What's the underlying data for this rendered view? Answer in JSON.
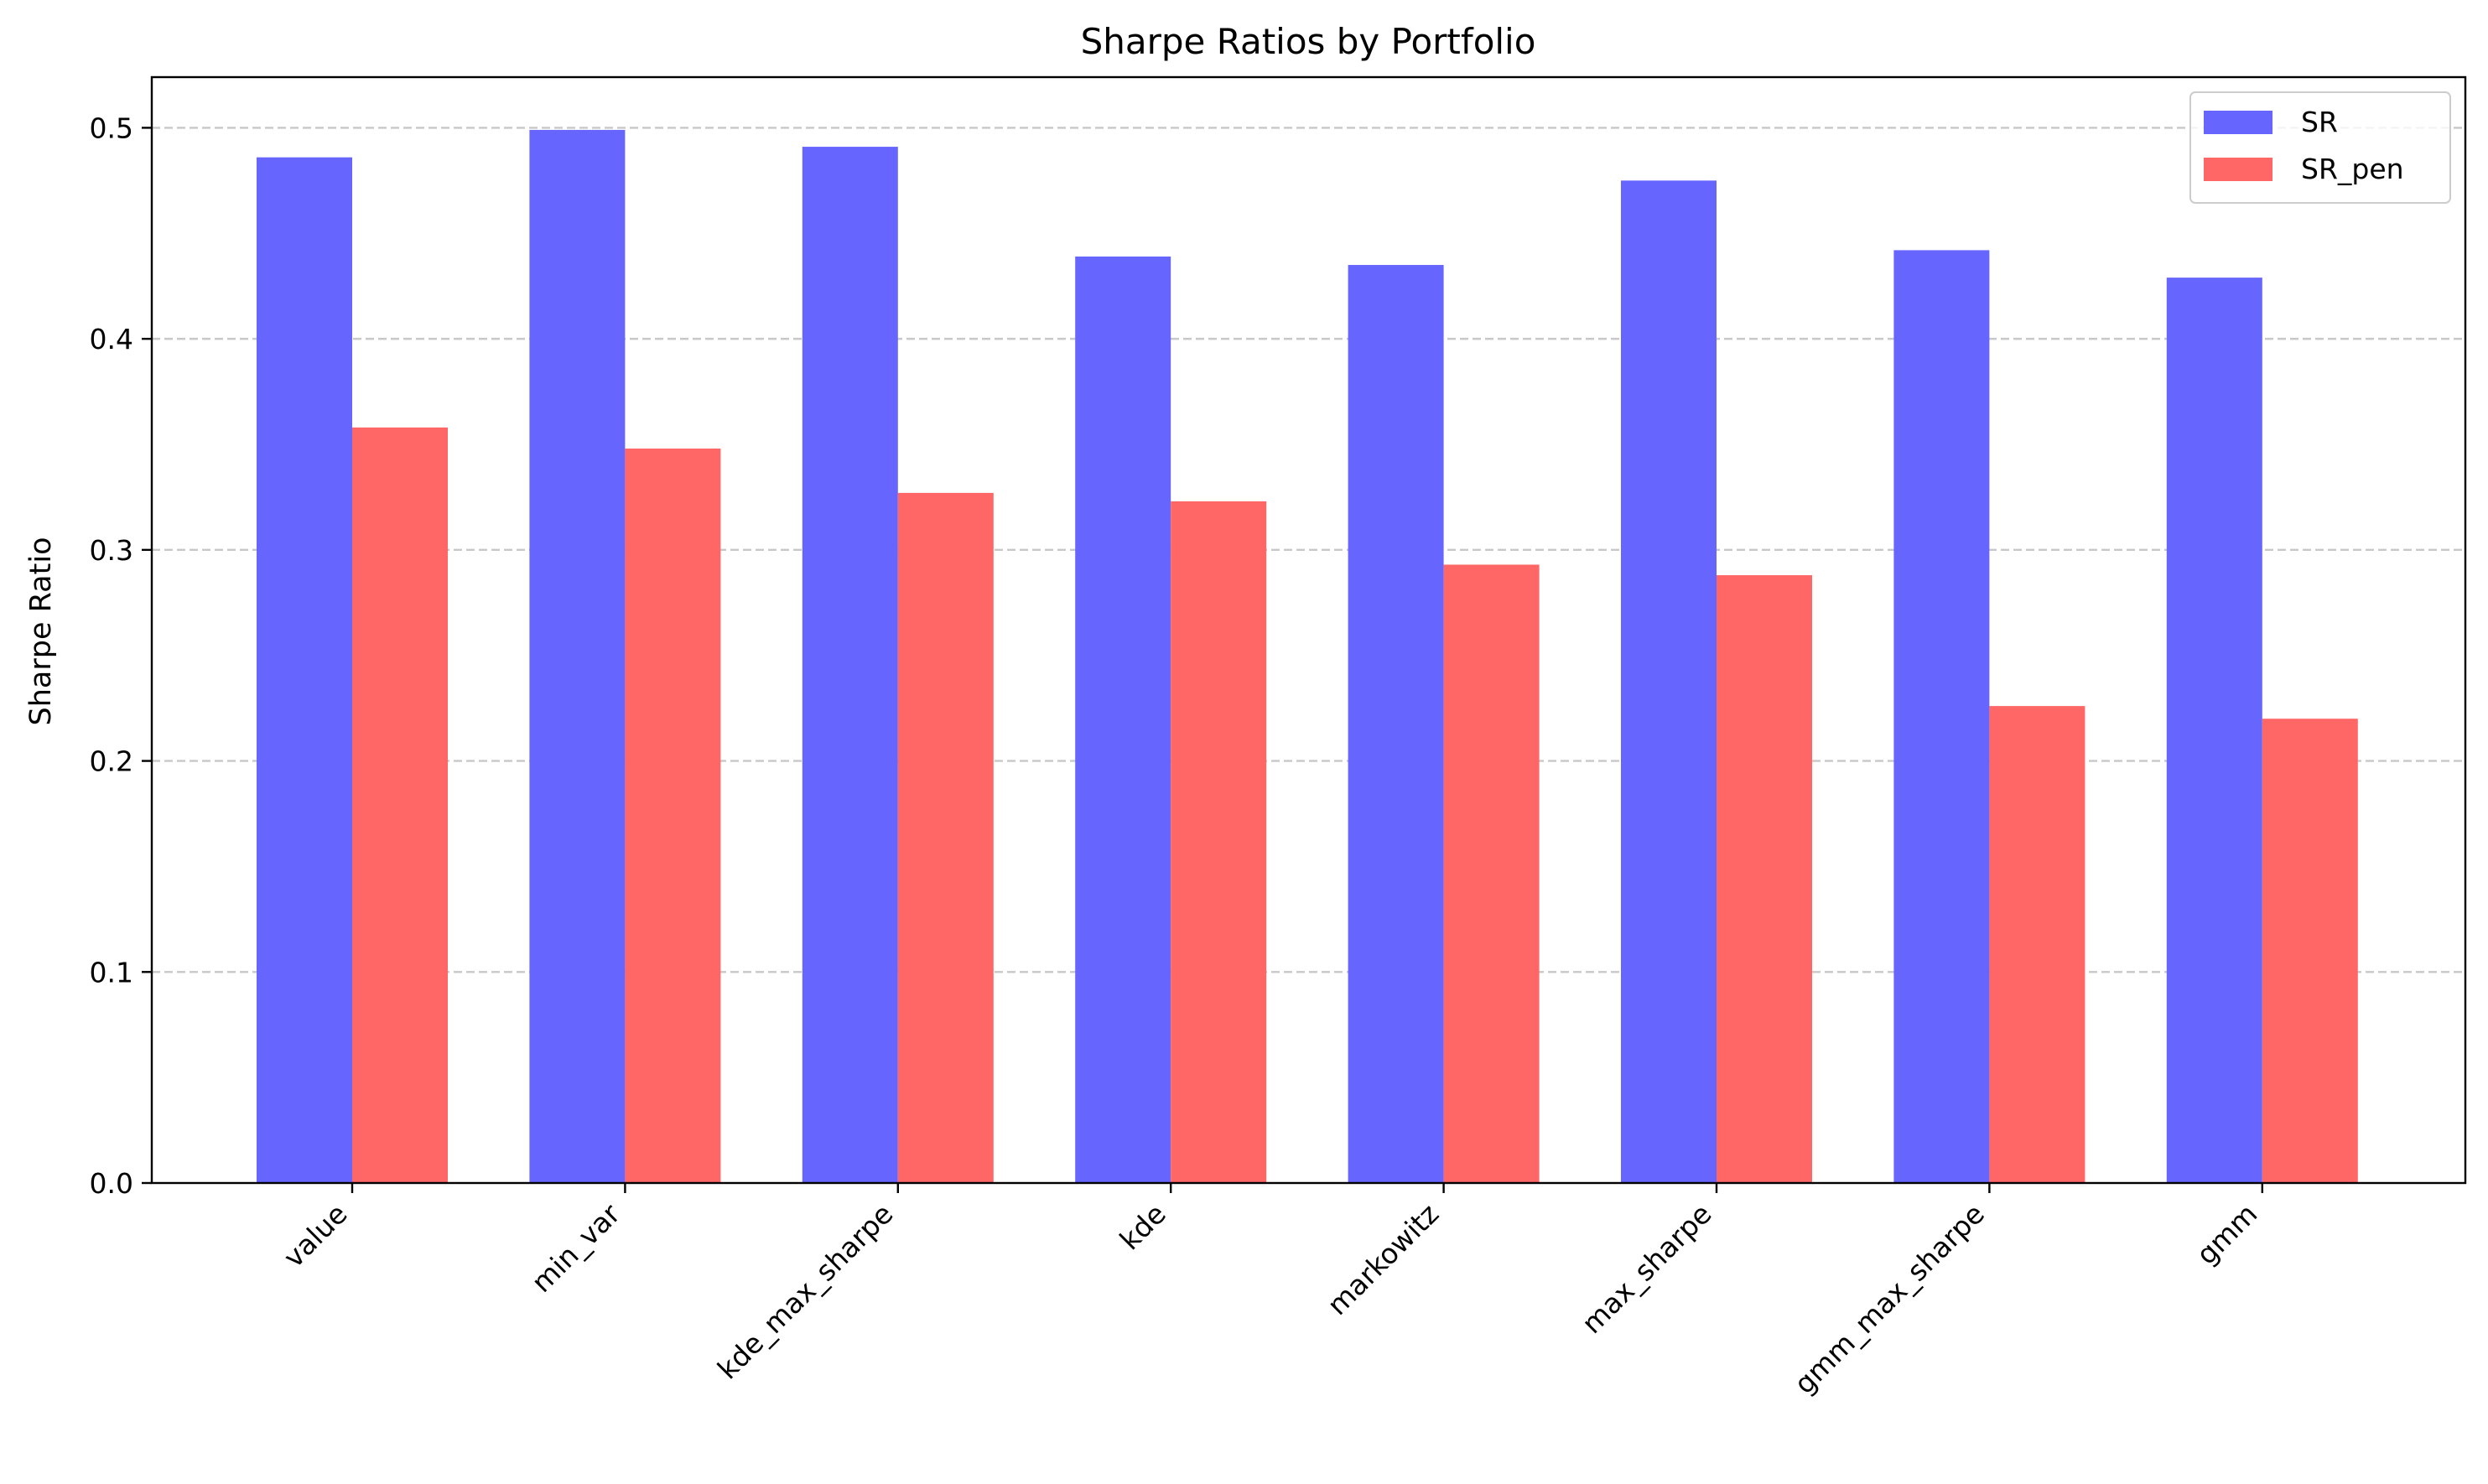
{
  "chart_data": {
    "type": "bar",
    "title": "Sharpe Ratios by Portfolio",
    "xlabel": "",
    "ylabel": "Sharpe Ratio",
    "ylim": [
      0,
      0.524
    ],
    "yticks": [
      0.0,
      0.1,
      0.2,
      0.3,
      0.4,
      0.5
    ],
    "ytick_labels": [
      "0.0",
      "0.1",
      "0.2",
      "0.3",
      "0.4",
      "0.5"
    ],
    "grid": {
      "y": true,
      "x": false,
      "style": "dashed"
    },
    "legend_position": "top-right",
    "categories": [
      "value",
      "min_var",
      "kde_max_sharpe",
      "kde",
      "markowitz",
      "max_sharpe",
      "gmm_max_sharpe",
      "gmm"
    ],
    "series": [
      {
        "name": "SR",
        "color": "#6666ff",
        "values": [
          0.486,
          0.499,
          0.491,
          0.439,
          0.435,
          0.475,
          0.442,
          0.429
        ]
      },
      {
        "name": "SR_pen",
        "color": "#ff6666",
        "values": [
          0.358,
          0.348,
          0.327,
          0.323,
          0.293,
          0.288,
          0.226,
          0.22
        ]
      }
    ]
  }
}
